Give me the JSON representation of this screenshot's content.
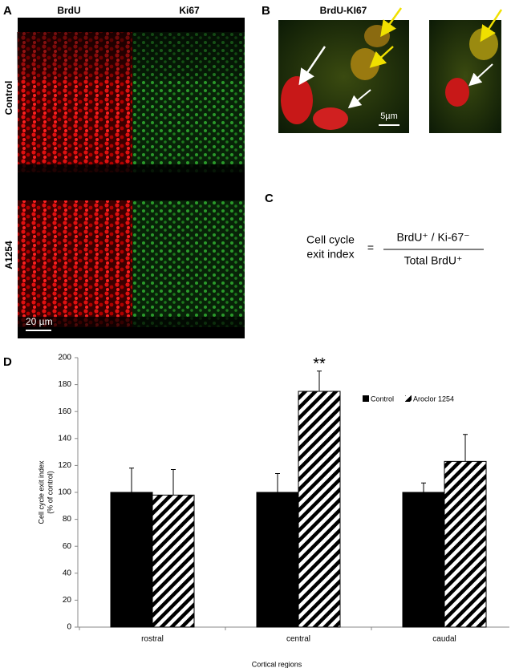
{
  "panel_a": {
    "label": "A",
    "columns": [
      "BrdU",
      "Ki67"
    ],
    "rows": [
      "Control",
      "A1254"
    ],
    "scale_bar": "20 µm"
  },
  "panel_b": {
    "label": "B",
    "title": "BrdU-KI67",
    "scale_bar": "5µm"
  },
  "panel_c": {
    "label": "C",
    "lhs": [
      "Cell cycle",
      "exit index"
    ],
    "equals": "=",
    "numerator": "BrdU⁺ / Ki-67⁻",
    "denominator": "Total BrdU⁺"
  },
  "panel_d": {
    "label": "D"
  },
  "chart_data": {
    "type": "bar",
    "ylabel": [
      "Cell cycle exit index",
      "(% of control)"
    ],
    "xlabel": "Cortical regions",
    "categories": [
      "rostral",
      "central",
      "caudal"
    ],
    "series": [
      {
        "name": "Control",
        "color": "#000000",
        "hatch": false,
        "values": [
          100,
          100,
          100
        ],
        "errors": [
          18,
          14,
          7
        ]
      },
      {
        "name": "Aroclor 1254",
        "color": "#000000",
        "hatch": true,
        "values": [
          98,
          175,
          123
        ],
        "errors": [
          19,
          15,
          20
        ]
      }
    ],
    "annotation": "**",
    "ylim": [
      0,
      200
    ],
    "yticks": [
      0,
      20,
      40,
      60,
      80,
      100,
      120,
      140,
      160,
      180,
      200
    ],
    "grid": false
  }
}
